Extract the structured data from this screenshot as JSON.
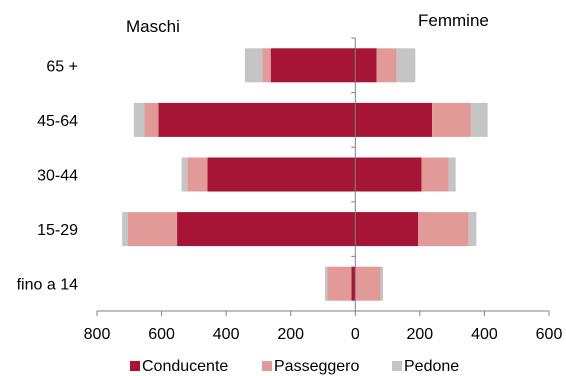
{
  "chart_data": {
    "type": "bar",
    "orientation": "horizontal-diverging",
    "categories": [
      "65 +",
      "45-64",
      "30-44",
      "15-29",
      "fino a 14"
    ],
    "left_label": "Maschi",
    "right_label": "Femmine",
    "xlim": [
      -800,
      600
    ],
    "x_ticks": [
      -800,
      -600,
      -400,
      -200,
      0,
      200,
      400,
      600
    ],
    "x_tick_labels": [
      "800",
      "600",
      "400",
      "200",
      "0",
      "200",
      "400",
      "600"
    ],
    "series": [
      {
        "name": "Conducente",
        "color": "#A61535",
        "male": [
          262,
          610,
          458,
          552,
          12
        ],
        "female": [
          66,
          238,
          205,
          195,
          0
        ]
      },
      {
        "name": "Passeggero",
        "color": "#E19A98",
        "male": [
          26,
          44,
          62,
          152,
          74
        ],
        "female": [
          62,
          120,
          84,
          156,
          78
        ]
      },
      {
        "name": "Pedone",
        "color": "#C5C5C5",
        "male": [
          54,
          32,
          18,
          18,
          8
        ],
        "female": [
          58,
          52,
          22,
          24,
          8
        ]
      }
    ],
    "legend_position": "bottom",
    "grid": false
  }
}
